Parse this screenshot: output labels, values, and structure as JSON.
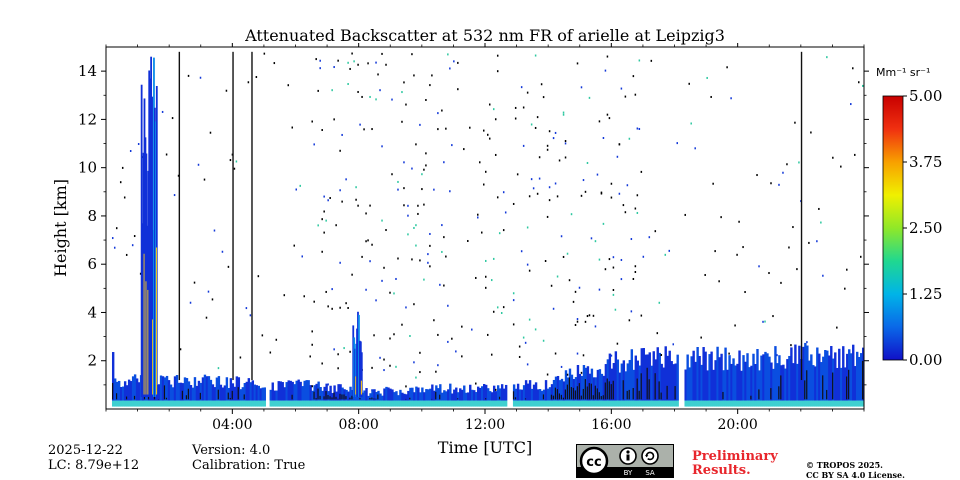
{
  "chart_data": {
    "type": "heatmap",
    "title": "Attenuated Backscatter at 532 nm FR of arielle at Leipzig3",
    "xlabel": "Time [UTC]",
    "ylabel": "Height [km]",
    "xlim": [
      0,
      24
    ],
    "ylim": [
      0,
      15
    ],
    "x_ticks": [
      4,
      8,
      12,
      16,
      20
    ],
    "x_tick_labels": [
      "04:00",
      "08:00",
      "12:00",
      "16:00",
      "20:00"
    ],
    "y_ticks": [
      2,
      4,
      6,
      8,
      10,
      12,
      14
    ],
    "colorbar": {
      "unit_label": "Mm⁻¹ sr⁻¹",
      "range": [
        0,
        5
      ],
      "ticks": [
        "0.00",
        "1.25",
        "2.50",
        "3.75",
        "5.00"
      ],
      "colors": [
        "#1010c8",
        "#0a68e8",
        "#00b4e8",
        "#20d890",
        "#90e828",
        "#f0f000",
        "#f8a000",
        "#f03010",
        "#c80000"
      ]
    },
    "layers": [
      {
        "name": "boundary-layer",
        "t_start": 0.2,
        "t_end": 24,
        "top_km_by_hour": [
          [
            0.2,
            1.2
          ],
          [
            2,
            1.2
          ],
          [
            4,
            1.1
          ],
          [
            5,
            1.0
          ],
          [
            6,
            1.0
          ],
          [
            7,
            0.9
          ],
          [
            8,
            0.7
          ],
          [
            10,
            0.8
          ],
          [
            12,
            0.9
          ],
          [
            14,
            1.0
          ],
          [
            15,
            1.6
          ],
          [
            16,
            1.9
          ],
          [
            18,
            2.2
          ],
          [
            20,
            2.0
          ],
          [
            22,
            2.2
          ],
          [
            24,
            2.2
          ]
        ]
      },
      {
        "name": "high-cloud-column",
        "t_start": 1.1,
        "t_end": 1.6,
        "top_km": 14.8
      },
      {
        "name": "aerosol-column",
        "t_start": 7.8,
        "t_end": 8.1,
        "top_km": 4.5
      }
    ],
    "data_gaps_utc": [
      "05:05",
      "12:45",
      "18:10"
    ]
  },
  "footer": {
    "date": "2025-12-22",
    "lc": "LC: 8.79e+12",
    "version": "Version: 4.0",
    "calibration": "Calibration: True",
    "preliminary_line1": "Preliminary",
    "preliminary_line2": "Results.",
    "copyright_line1": "© TROPOS 2025.",
    "copyright_line2": "CC BY SA 4.0 License.",
    "license_badge": {
      "main": "cc",
      "by": "BY",
      "sa": "SA"
    }
  }
}
